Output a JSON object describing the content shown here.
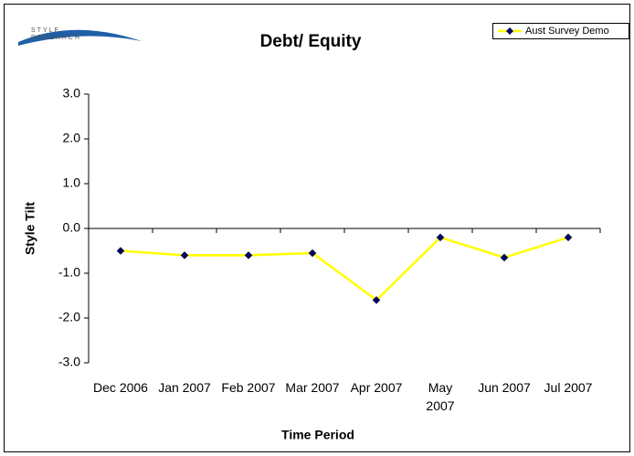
{
  "chart_data": {
    "type": "line",
    "title": "Debt/ Equity",
    "logo": [
      "STYLE",
      "RESEARCH"
    ],
    "x_label": "Time Period",
    "y_label": "Style Tilt",
    "categories": [
      "Dec 2006",
      "Jan 2007",
      "Feb 2007",
      "Mar 2007",
      "Apr 2007",
      "May 2007",
      "Jun 2007",
      "Jul 2007"
    ],
    "series": [
      {
        "name": "Aust Survey Demo",
        "color": "#ffff00",
        "marker_color": "#000066",
        "values": [
          -0.5,
          -0.6,
          -0.6,
          -0.55,
          -1.6,
          -0.2,
          -0.65,
          -0.2
        ]
      }
    ],
    "ylim": [
      -3,
      3
    ],
    "yticks": [
      {
        "value": -3,
        "label": "-3.0"
      },
      {
        "value": -2,
        "label": "-2.0"
      },
      {
        "value": -1,
        "label": "-1.0"
      },
      {
        "value": 0,
        "label": "0.0"
      },
      {
        "value": 1,
        "label": "1.0"
      },
      {
        "value": 2,
        "label": "2.0"
      },
      {
        "value": 3,
        "label": "3.0"
      }
    ],
    "legend": "top-right",
    "grid": false
  }
}
